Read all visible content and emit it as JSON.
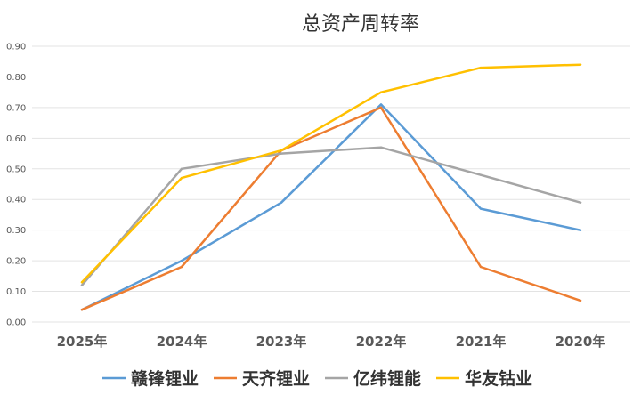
{
  "chart_data": {
    "type": "line",
    "title": "总资产周转率",
    "categories": [
      "2025年",
      "2024年",
      "2023年",
      "2022年",
      "2021年",
      "2020年"
    ],
    "ylim": [
      0,
      0.9
    ],
    "yticks": [
      "0.00",
      "0.10",
      "0.20",
      "0.30",
      "0.40",
      "0.50",
      "0.60",
      "0.70",
      "0.80",
      "0.90"
    ],
    "grid": true,
    "legend_position": "bottom",
    "series": [
      {
        "name": "赣锋锂业",
        "color": "#5B9BD5",
        "values": [
          0.04,
          0.2,
          0.39,
          0.71,
          0.37,
          0.3
        ]
      },
      {
        "name": "天齐锂业",
        "color": "#ED7D31",
        "values": [
          0.04,
          0.18,
          0.56,
          0.7,
          0.18,
          0.07
        ]
      },
      {
        "name": "亿纬锂能",
        "color": "#A5A5A5",
        "values": [
          0.12,
          0.5,
          0.55,
          0.57,
          0.48,
          0.39
        ]
      },
      {
        "name": "华友钴业",
        "color": "#FFC000",
        "values": [
          0.13,
          0.47,
          0.56,
          0.75,
          0.83,
          0.84
        ]
      }
    ]
  }
}
